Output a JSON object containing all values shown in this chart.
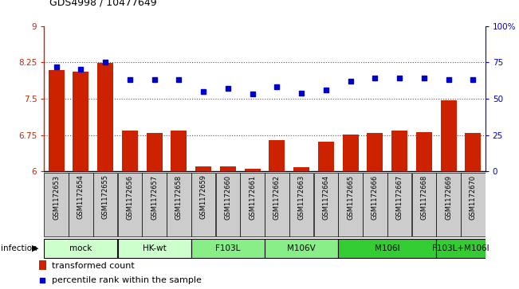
{
  "title": "GDS4998 / 10477649",
  "samples": [
    "GSM1172653",
    "GSM1172654",
    "GSM1172655",
    "GSM1172656",
    "GSM1172657",
    "GSM1172658",
    "GSM1172659",
    "GSM1172660",
    "GSM1172661",
    "GSM1172662",
    "GSM1172663",
    "GSM1172664",
    "GSM1172665",
    "GSM1172666",
    "GSM1172667",
    "GSM1172668",
    "GSM1172669",
    "GSM1172670"
  ],
  "bar_values": [
    8.09,
    8.06,
    8.24,
    6.84,
    6.8,
    6.84,
    6.1,
    6.1,
    6.05,
    6.64,
    6.08,
    6.62,
    6.76,
    6.8,
    6.84,
    6.81,
    7.46,
    6.8
  ],
  "dot_values": [
    72,
    70,
    75,
    63,
    63,
    63,
    55,
    57,
    53,
    58,
    54,
    56,
    62,
    64,
    64,
    64,
    63,
    63
  ],
  "ylim_left": [
    6,
    9
  ],
  "ylim_right": [
    0,
    100
  ],
  "yticks_left": [
    6,
    6.75,
    7.5,
    8.25,
    9
  ],
  "ytick_labels_left": [
    "6",
    "6.75",
    "7.5",
    "8.25",
    "9"
  ],
  "yticks_right": [
    0,
    25,
    50,
    75,
    100
  ],
  "ytick_labels_right": [
    "0",
    "25",
    "50",
    "75",
    "100%"
  ],
  "bar_color": "#cc2200",
  "dot_color": "#0000cc",
  "bar_width": 0.65,
  "groups": [
    {
      "label": "mock",
      "start": 0,
      "end": 2,
      "color": "#ccffcc"
    },
    {
      "label": "HK-wt",
      "start": 3,
      "end": 5,
      "color": "#ccffcc"
    },
    {
      "label": "F103L",
      "start": 6,
      "end": 8,
      "color": "#88ee88"
    },
    {
      "label": "M106V",
      "start": 9,
      "end": 11,
      "color": "#88ee88"
    },
    {
      "label": "M106I",
      "start": 12,
      "end": 15,
      "color": "#33cc33"
    },
    {
      "label": "F103L+M106I",
      "start": 16,
      "end": 17,
      "color": "#33cc33"
    }
  ],
  "infection_label": "infection",
  "legend_bar_label": "transformed count",
  "legend_dot_label": "percentile rank within the sample",
  "axis_color_left": "#cc2200",
  "axis_color_right": "#0000cc",
  "xtick_box_color": "#cccccc",
  "gridline_color": "#555555",
  "gridline_values": [
    6.75,
    7.5,
    8.25
  ]
}
